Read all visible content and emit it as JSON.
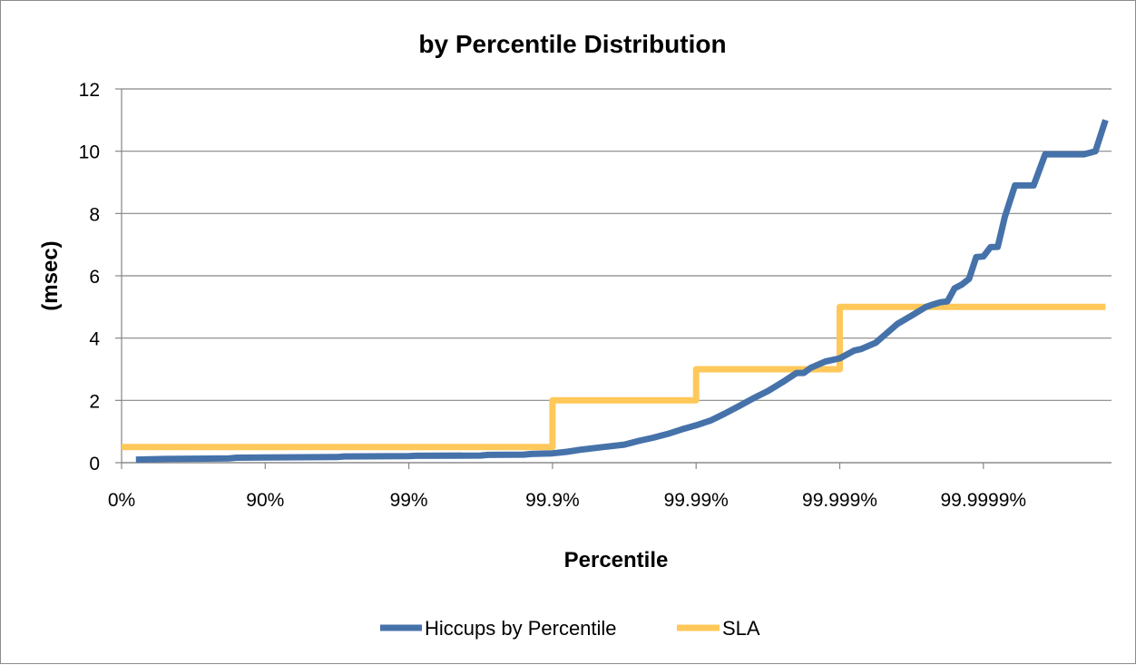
{
  "chart_data": {
    "type": "line",
    "title": "by Percentile Distribution",
    "xlabel": "Percentile",
    "ylabel": "(msec)",
    "x_scale": "log-percentile",
    "x_ticks": [
      {
        "label": "0%",
        "pos": 0
      },
      {
        "label": "90%",
        "pos": 1
      },
      {
        "label": "99%",
        "pos": 2
      },
      {
        "label": "99.9%",
        "pos": 3
      },
      {
        "label": "99.99%",
        "pos": 4
      },
      {
        "label": "99.999%",
        "pos": 5
      },
      {
        "label": "99.9999%",
        "pos": 6
      }
    ],
    "y_ticks": [
      "0",
      "2",
      "4",
      "6",
      "8",
      "10",
      "12"
    ],
    "ylim": [
      0,
      12
    ],
    "xlim": [
      0,
      6.85
    ],
    "grid": "horizontal",
    "legend_position": "bottom",
    "series": [
      {
        "name": "Hiccups by Percentile",
        "color": "#4672aa",
        "points": [
          [
            0.1,
            0.1
          ],
          [
            0.3,
            0.12
          ],
          [
            0.6,
            0.13
          ],
          [
            0.75,
            0.14
          ],
          [
            0.8,
            0.16
          ],
          [
            1.0,
            0.17
          ],
          [
            1.5,
            0.18
          ],
          [
            1.55,
            0.2
          ],
          [
            2.0,
            0.21
          ],
          [
            2.05,
            0.22
          ],
          [
            2.5,
            0.23
          ],
          [
            2.55,
            0.25
          ],
          [
            2.8,
            0.26
          ],
          [
            2.85,
            0.28
          ],
          [
            3.0,
            0.3
          ],
          [
            3.1,
            0.35
          ],
          [
            3.2,
            0.42
          ],
          [
            3.35,
            0.5
          ],
          [
            3.5,
            0.58
          ],
          [
            3.6,
            0.7
          ],
          [
            3.7,
            0.8
          ],
          [
            3.8,
            0.92
          ],
          [
            3.9,
            1.07
          ],
          [
            4.0,
            1.2
          ],
          [
            4.1,
            1.35
          ],
          [
            4.2,
            1.58
          ],
          [
            4.3,
            1.82
          ],
          [
            4.4,
            2.07
          ],
          [
            4.5,
            2.3
          ],
          [
            4.6,
            2.58
          ],
          [
            4.7,
            2.88
          ],
          [
            4.75,
            2.88
          ],
          [
            4.8,
            3.05
          ],
          [
            4.9,
            3.25
          ],
          [
            5.0,
            3.35
          ],
          [
            5.1,
            3.6
          ],
          [
            5.15,
            3.65
          ],
          [
            5.25,
            3.85
          ],
          [
            5.3,
            4.05
          ],
          [
            5.4,
            4.45
          ],
          [
            5.5,
            4.72
          ],
          [
            5.6,
            5.0
          ],
          [
            5.65,
            5.08
          ],
          [
            5.7,
            5.15
          ],
          [
            5.75,
            5.18
          ],
          [
            5.8,
            5.6
          ],
          [
            5.85,
            5.72
          ],
          [
            5.9,
            5.9
          ],
          [
            5.95,
            6.6
          ],
          [
            6.0,
            6.62
          ],
          [
            6.05,
            6.92
          ],
          [
            6.1,
            6.93
          ],
          [
            6.15,
            7.9
          ],
          [
            6.22,
            8.9
          ],
          [
            6.35,
            8.9
          ],
          [
            6.43,
            9.9
          ],
          [
            6.55,
            9.9
          ],
          [
            6.7,
            9.9
          ],
          [
            6.78,
            10.0
          ],
          [
            6.85,
            11.0
          ]
        ]
      },
      {
        "name": "SLA",
        "color": "#ffc85a",
        "points": [
          [
            0,
            0.5
          ],
          [
            3,
            0.5
          ],
          [
            3,
            2
          ],
          [
            4,
            2
          ],
          [
            4,
            3
          ],
          [
            5,
            3
          ],
          [
            5,
            5
          ],
          [
            6.85,
            5
          ]
        ]
      }
    ]
  }
}
